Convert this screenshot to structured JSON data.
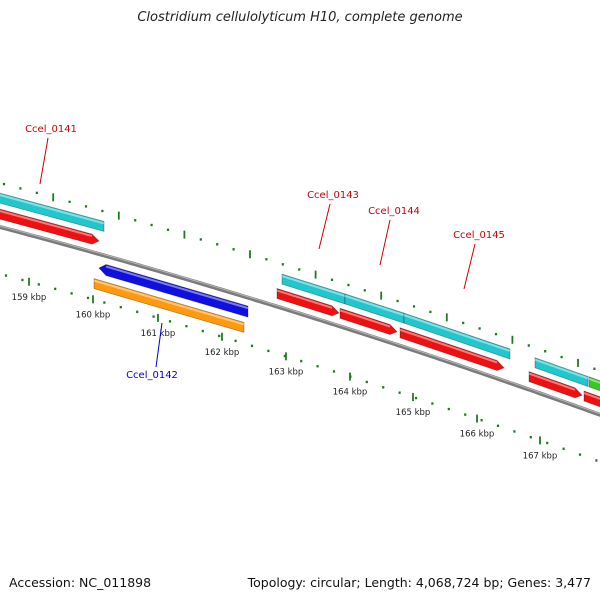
{
  "title": "Clostridium cellulolyticum H10, complete genome",
  "footer": {
    "accession": "Accession: NC_011898",
    "summary": "Topology: circular; Length: 4,068,724 bp; Genes: 3,477"
  },
  "colors": {
    "forward_cds": "#21c7cc",
    "forward_gene": "#ee1111",
    "reverse_cds": "#1010dd",
    "reverse_gene": "#ff9a10",
    "other_feature": "#33cc22",
    "backbone": "#7b7b7b",
    "ticks": "#1f7a1f",
    "forward_label": "#cc0000",
    "reverse_label": "#0000cc"
  },
  "kbp_ticks": [
    "159 kbp",
    "160 kbp",
    "161 kbp",
    "162 kbp",
    "163 kbp",
    "164 kbp",
    "165 kbp",
    "166 kbp",
    "167 kbp"
  ],
  "genes": [
    {
      "name": "Ccel_0141",
      "strand": "forward"
    },
    {
      "name": "Ccel_0142",
      "strand": "reverse"
    },
    {
      "name": "Ccel_0143",
      "strand": "forward"
    },
    {
      "name": "Ccel_0144",
      "strand": "forward"
    },
    {
      "name": "Ccel_0145",
      "strand": "forward"
    }
  ]
}
